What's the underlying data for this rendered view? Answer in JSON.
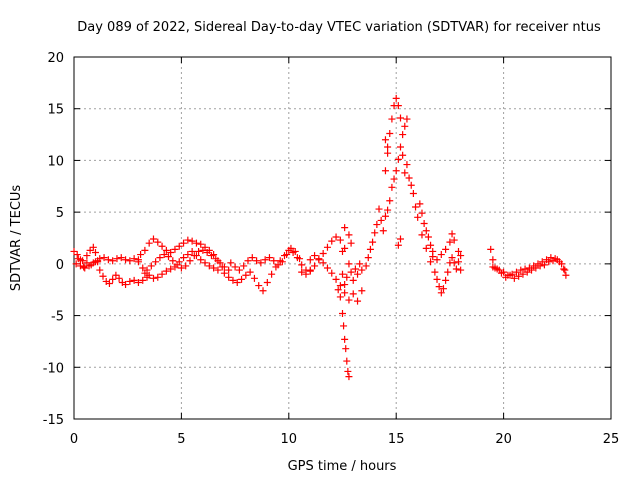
{
  "chart_data": {
    "type": "scatter",
    "title": "Day 089 of 2022, Sidereal Day-to-day VTEC variation (SDTVAR) for receiver ntus",
    "xlabel": "GPS time / hours",
    "ylabel": "SDTVAR / TECUs",
    "xlim": [
      0,
      25
    ],
    "ylim": [
      -15,
      20
    ],
    "x_ticks": [
      "0",
      "5",
      "10",
      "15",
      "20",
      "25"
    ],
    "y_ticks": [
      "-15",
      "-10",
      "-5",
      "0",
      "5",
      "10",
      "15",
      "20"
    ],
    "grid": true,
    "marker": "+",
    "series_color": "#ff0000",
    "series": [
      {
        "name": "SDTVAR",
        "points": [
          [
            0.0,
            1.2
          ],
          [
            0.15,
            0.9
          ],
          [
            0.3,
            0.4
          ],
          [
            0.45,
            -0.3
          ],
          [
            0.6,
            0.8
          ],
          [
            0.75,
            1.3
          ],
          [
            0.9,
            1.6
          ],
          [
            1.0,
            1.1
          ],
          [
            1.1,
            0.2
          ],
          [
            1.2,
            -0.6
          ],
          [
            1.35,
            -1.2
          ],
          [
            1.5,
            -1.7
          ],
          [
            1.65,
            -1.9
          ],
          [
            1.8,
            -1.5
          ],
          [
            1.95,
            -1.1
          ],
          [
            2.1,
            -1.4
          ],
          [
            2.25,
            -1.8
          ],
          [
            2.4,
            -2.0
          ],
          [
            2.6,
            -1.7
          ],
          [
            2.8,
            -1.6
          ],
          [
            3.0,
            -1.8
          ],
          [
            3.2,
            -1.6
          ],
          [
            3.4,
            -1.3
          ],
          [
            0.2,
            0.5
          ],
          [
            0.4,
            0.3
          ],
          [
            0.6,
            0.1
          ],
          [
            0.8,
            -0.1
          ],
          [
            1.0,
            0.2
          ],
          [
            1.2,
            0.5
          ],
          [
            1.4,
            0.6
          ],
          [
            1.6,
            0.4
          ],
          [
            1.8,
            0.3
          ],
          [
            2.0,
            0.5
          ],
          [
            2.2,
            0.6
          ],
          [
            2.4,
            0.4
          ],
          [
            2.6,
            0.3
          ],
          [
            2.8,
            0.5
          ],
          [
            3.0,
            0.4
          ],
          [
            0.1,
            0.0
          ],
          [
            0.3,
            -0.2
          ],
          [
            0.5,
            -0.4
          ],
          [
            0.7,
            -0.2
          ],
          [
            0.9,
            0.1
          ],
          [
            1.1,
            0.3
          ],
          [
            3.1,
            0.9
          ],
          [
            3.3,
            1.3
          ],
          [
            3.5,
            2.0
          ],
          [
            3.7,
            2.4
          ],
          [
            3.9,
            2.1
          ],
          [
            4.1,
            1.7
          ],
          [
            4.3,
            1.3
          ],
          [
            4.5,
            1.1
          ],
          [
            4.7,
            1.4
          ],
          [
            4.9,
            1.7
          ],
          [
            5.1,
            2.0
          ],
          [
            5.3,
            2.3
          ],
          [
            5.5,
            2.2
          ],
          [
            5.7,
            2.0
          ],
          [
            5.9,
            1.9
          ],
          [
            6.1,
            1.6
          ],
          [
            6.3,
            1.3
          ],
          [
            6.5,
            0.9
          ],
          [
            6.7,
            0.3
          ],
          [
            6.9,
            -0.3
          ],
          [
            3.0,
            0.2
          ],
          [
            3.2,
            -0.4
          ],
          [
            3.4,
            -0.6
          ],
          [
            3.6,
            -0.2
          ],
          [
            3.8,
            0.2
          ],
          [
            4.0,
            0.6
          ],
          [
            4.2,
            0.9
          ],
          [
            4.4,
            0.7
          ],
          [
            4.6,
            0.3
          ],
          [
            4.8,
            -0.1
          ],
          [
            5.0,
            -0.4
          ],
          [
            5.2,
            -0.2
          ],
          [
            5.4,
            0.3
          ],
          [
            5.6,
            0.8
          ],
          [
            5.8,
            1.2
          ],
          [
            6.0,
            1.3
          ],
          [
            6.2,
            1.1
          ],
          [
            6.4,
            0.8
          ],
          [
            6.6,
            0.5
          ],
          [
            6.8,
            0.1
          ],
          [
            7.0,
            -0.3
          ],
          [
            7.2,
            -0.6
          ],
          [
            3.3,
            -0.9
          ],
          [
            3.5,
            -1.1
          ],
          [
            3.7,
            -1.4
          ],
          [
            3.9,
            -1.3
          ],
          [
            4.1,
            -1.0
          ],
          [
            4.3,
            -0.7
          ],
          [
            4.5,
            -0.5
          ],
          [
            4.7,
            -0.3
          ],
          [
            4.9,
            0.2
          ],
          [
            5.1,
            0.6
          ],
          [
            5.3,
            0.9
          ],
          [
            5.5,
            1.2
          ],
          [
            5.7,
            0.8
          ],
          [
            5.9,
            0.4
          ],
          [
            6.1,
            0.1
          ],
          [
            6.3,
            -0.2
          ],
          [
            6.5,
            -0.4
          ],
          [
            6.7,
            -0.6
          ],
          [
            7.0,
            -0.9
          ],
          [
            7.2,
            -1.3
          ],
          [
            7.4,
            -1.6
          ],
          [
            7.6,
            -1.8
          ],
          [
            7.8,
            -1.5
          ],
          [
            8.0,
            -1.1
          ],
          [
            8.2,
            -0.8
          ],
          [
            8.4,
            -1.4
          ],
          [
            8.6,
            -2.1
          ],
          [
            8.8,
            -2.6
          ],
          [
            9.0,
            -1.8
          ],
          [
            9.2,
            -1.0
          ],
          [
            9.4,
            -0.3
          ],
          [
            9.6,
            0.3
          ],
          [
            9.8,
            0.8
          ],
          [
            10.0,
            1.3
          ],
          [
            10.2,
            1.1
          ],
          [
            10.4,
            0.6
          ],
          [
            10.6,
            -0.1
          ],
          [
            10.8,
            -0.6
          ],
          [
            11.0,
            -0.7
          ],
          [
            7.3,
            0.1
          ],
          [
            7.5,
            -0.3
          ],
          [
            7.7,
            -0.6
          ],
          [
            7.9,
            -0.2
          ],
          [
            8.1,
            0.3
          ],
          [
            8.3,
            0.6
          ],
          [
            8.5,
            0.3
          ],
          [
            8.7,
            0.1
          ],
          [
            8.9,
            0.4
          ],
          [
            9.1,
            0.6
          ],
          [
            9.3,
            0.3
          ],
          [
            9.5,
            -0.1
          ],
          [
            9.7,
            0.2
          ],
          [
            9.9,
            0.9
          ],
          [
            10.1,
            1.5
          ],
          [
            10.3,
            1.2
          ],
          [
            10.5,
            0.5
          ],
          [
            10.6,
            -0.8
          ],
          [
            10.8,
            -1.0
          ],
          [
            11.0,
            -0.6
          ],
          [
            11.2,
            -0.2
          ],
          [
            11.4,
            0.4
          ],
          [
            11.6,
            1.0
          ],
          [
            11.8,
            1.6
          ],
          [
            12.0,
            2.2
          ],
          [
            12.2,
            2.6
          ],
          [
            12.4,
            2.3
          ],
          [
            12.6,
            1.5
          ],
          [
            11.0,
            0.4
          ],
          [
            11.2,
            0.8
          ],
          [
            11.4,
            0.5
          ],
          [
            11.6,
            0.1
          ],
          [
            11.8,
            -0.4
          ],
          [
            12.0,
            -0.9
          ],
          [
            12.2,
            -1.5
          ],
          [
            12.4,
            -2.1
          ],
          [
            12.6,
            -2.8
          ],
          [
            12.8,
            -3.5
          ],
          [
            13.0,
            -2.9
          ],
          [
            13.2,
            -3.6
          ],
          [
            13.4,
            -2.6
          ],
          [
            12.3,
            -2.5
          ],
          [
            12.4,
            -3.2
          ],
          [
            12.5,
            -4.8
          ],
          [
            12.55,
            -6.0
          ],
          [
            12.6,
            -7.3
          ],
          [
            12.65,
            -8.2
          ],
          [
            12.7,
            -9.4
          ],
          [
            12.75,
            -10.4
          ],
          [
            12.8,
            -10.9
          ],
          [
            12.5,
            -1.0
          ],
          [
            12.6,
            -2.0
          ],
          [
            12.7,
            -1.3
          ],
          [
            12.8,
            0.0
          ],
          [
            12.9,
            -0.8
          ],
          [
            13.0,
            -1.6
          ],
          [
            13.1,
            -0.5
          ],
          [
            13.2,
            -1.0
          ],
          [
            13.3,
            0.0
          ],
          [
            13.4,
            -0.6
          ],
          [
            13.6,
            -0.2
          ],
          [
            13.7,
            0.6
          ],
          [
            13.8,
            1.4
          ],
          [
            12.6,
            3.5
          ],
          [
            12.8,
            2.8
          ],
          [
            12.5,
            1.2
          ],
          [
            12.9,
            2.0
          ],
          [
            13.9,
            2.1
          ],
          [
            14.0,
            3.0
          ],
          [
            14.1,
            3.8
          ],
          [
            14.2,
            5.3
          ],
          [
            14.3,
            4.2
          ],
          [
            14.4,
            3.2
          ],
          [
            14.5,
            4.6
          ],
          [
            14.6,
            5.2
          ],
          [
            14.7,
            6.1
          ],
          [
            14.8,
            7.4
          ],
          [
            14.9,
            8.2
          ],
          [
            15.0,
            9.0
          ],
          [
            15.1,
            10.1
          ],
          [
            15.2,
            11.3
          ],
          [
            15.3,
            10.5
          ],
          [
            15.4,
            8.8
          ],
          [
            14.6,
            11.3
          ],
          [
            14.7,
            12.6
          ],
          [
            14.8,
            14.0
          ],
          [
            14.9,
            15.3
          ],
          [
            15.0,
            16.0
          ],
          [
            15.1,
            15.3
          ],
          [
            15.2,
            14.1
          ],
          [
            15.3,
            12.5
          ],
          [
            15.4,
            13.3
          ],
          [
            15.5,
            14.0
          ],
          [
            14.5,
            12.0
          ],
          [
            14.6,
            10.7
          ],
          [
            14.5,
            9.0
          ],
          [
            15.5,
            9.6
          ],
          [
            15.6,
            8.3
          ],
          [
            15.7,
            7.6
          ],
          [
            15.8,
            6.8
          ],
          [
            15.9,
            5.5
          ],
          [
            16.0,
            4.5
          ],
          [
            16.1,
            5.8
          ],
          [
            16.2,
            4.9
          ],
          [
            16.3,
            3.9
          ],
          [
            16.4,
            3.2
          ],
          [
            16.5,
            2.6
          ],
          [
            16.6,
            1.8
          ],
          [
            16.7,
            1.2
          ],
          [
            15.1,
            1.8
          ],
          [
            15.2,
            2.4
          ],
          [
            16.2,
            2.8
          ],
          [
            16.4,
            1.5
          ],
          [
            16.6,
            0.2
          ],
          [
            16.8,
            -0.8
          ],
          [
            16.9,
            -1.5
          ],
          [
            17.0,
            -2.2
          ],
          [
            17.1,
            -2.8
          ],
          [
            17.2,
            -2.4
          ],
          [
            17.3,
            -1.6
          ],
          [
            17.4,
            -0.8
          ],
          [
            17.5,
            0.1
          ],
          [
            17.6,
            0.6
          ],
          [
            17.7,
            0.1
          ],
          [
            17.8,
            -0.5
          ],
          [
            17.9,
            0.2
          ],
          [
            18.0,
            0.8
          ],
          [
            16.7,
            0.7
          ],
          [
            16.9,
            0.4
          ],
          [
            17.1,
            0.9
          ],
          [
            17.3,
            1.4
          ],
          [
            17.5,
            2.1
          ],
          [
            17.6,
            2.9
          ],
          [
            17.7,
            2.3
          ],
          [
            17.9,
            1.2
          ],
          [
            18.0,
            -0.6
          ],
          [
            19.4,
            1.4
          ],
          [
            19.5,
            0.4
          ],
          [
            19.6,
            -0.4
          ],
          [
            19.8,
            -0.6
          ],
          [
            20.0,
            -0.8
          ],
          [
            20.2,
            -1.1
          ],
          [
            20.4,
            -1.0
          ],
          [
            20.6,
            -0.8
          ],
          [
            20.8,
            -0.6
          ],
          [
            21.0,
            -0.5
          ],
          [
            21.2,
            -0.4
          ],
          [
            21.4,
            -0.2
          ],
          [
            21.6,
            0.0
          ],
          [
            21.8,
            0.2
          ],
          [
            22.0,
            0.4
          ],
          [
            22.2,
            0.6
          ],
          [
            22.4,
            0.5
          ],
          [
            22.6,
            0.2
          ],
          [
            22.8,
            -0.5
          ],
          [
            22.9,
            -1.1
          ],
          [
            19.5,
            -0.3
          ],
          [
            19.7,
            -0.5
          ],
          [
            19.9,
            -0.9
          ],
          [
            20.1,
            -1.3
          ],
          [
            20.3,
            -1.1
          ],
          [
            20.5,
            -1.4
          ],
          [
            20.7,
            -1.2
          ],
          [
            20.9,
            -1.0
          ],
          [
            21.1,
            -0.8
          ],
          [
            21.3,
            -0.6
          ],
          [
            21.5,
            -0.4
          ],
          [
            21.7,
            -0.2
          ],
          [
            21.9,
            -0.1
          ],
          [
            22.1,
            0.2
          ],
          [
            22.3,
            0.3
          ],
          [
            22.5,
            0.4
          ],
          [
            22.7,
            0.0
          ],
          [
            22.85,
            -0.6
          ]
        ]
      }
    ]
  }
}
